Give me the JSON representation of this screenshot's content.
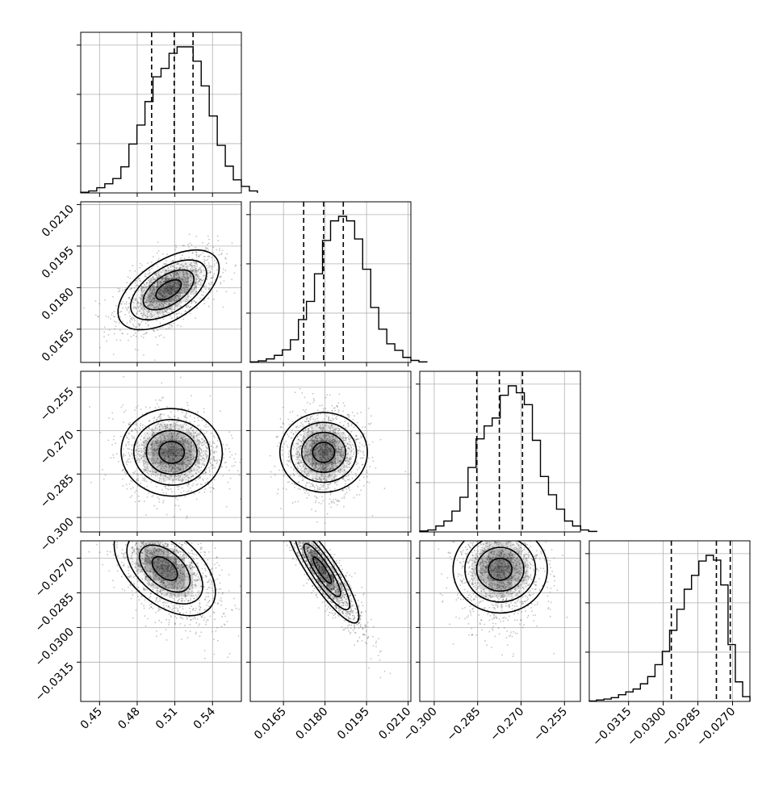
{
  "chart_data": {
    "type": "corner",
    "parameters": [
      {
        "id": "p0",
        "range": [
          0.435,
          0.563
        ],
        "ticks": [
          "0.45",
          "0.48",
          "0.51",
          "0.54"
        ],
        "tick_values": [
          0.45,
          0.48,
          0.51,
          0.54
        ],
        "quantiles": [
          0.4915,
          0.5095,
          0.5245
        ],
        "histogram": {
          "edges_start": 0.435,
          "bin_width": 0.0064,
          "counts": [
            1,
            3,
            8,
            14,
            22,
            40,
            75,
            104,
            140,
            178,
            191,
            214,
            224,
            224,
            202,
            164,
            118,
            73,
            41,
            20,
            10,
            3
          ]
        }
      },
      {
        "id": "p1",
        "range": [
          0.0153,
          0.0211
        ],
        "ticks": [
          "0.0165",
          "0.0180",
          "0.0195",
          "0.0210"
        ],
        "tick_values": [
          0.0165,
          0.018,
          0.0195,
          0.021
        ],
        "quantiles": [
          0.01723,
          0.01795,
          0.01866
        ],
        "histogram": {
          "edges_start": 0.0153,
          "bin_width": 0.00029,
          "counts": [
            1,
            3,
            7,
            14,
            25,
            45,
            85,
            121,
            176,
            242,
            281,
            290,
            281,
            245,
            185,
            109,
            66,
            37,
            24,
            10,
            4,
            1
          ]
        }
      },
      {
        "id": "p2",
        "range": [
          -0.305,
          -0.2495
        ],
        "ticks": [
          "−0.300",
          "−0.285",
          "−0.270",
          "−0.255"
        ],
        "tick_values": [
          -0.3,
          -0.285,
          -0.27,
          -0.255
        ],
        "quantiles": [
          -0.2853,
          -0.2775,
          -0.2695
        ],
        "histogram": {
          "edges_start": -0.305,
          "bin_width": 0.00278,
          "counts": [
            2,
            4,
            12,
            22,
            42,
            70,
            130,
            188,
            214,
            230,
            276,
            295,
            281,
            257,
            185,
            112,
            75,
            46,
            22,
            12,
            4,
            1
          ]
        }
      },
      {
        "id": "p3",
        "range": [
          -0.0332,
          -0.02625
        ],
        "ticks": [
          "−0.0315",
          "−0.0300",
          "−0.0285",
          "−0.0270"
        ],
        "tick_values": [
          -0.0315,
          -0.03,
          -0.0285,
          -0.027
        ],
        "quantiles": [
          -0.02965,
          -0.0277,
          -0.0271
        ],
        "histogram": {
          "edges_start": -0.0332,
          "bin_width": 0.000316,
          "counts": [
            1,
            3,
            5,
            8,
            14,
            20,
            26,
            37,
            52,
            77,
            105,
            149,
            193,
            235,
            264,
            294,
            306,
            296,
            244,
            119,
            41,
            10
          ]
        }
      }
    ],
    "pairs": [
      {
        "x": "p0",
        "y": "p1",
        "center": [
          0.505,
          0.01792
        ],
        "sigma": [
          0.0168,
          0.0006
        ],
        "rho": 0.55,
        "shift": [
          0.0,
          0.0
        ]
      },
      {
        "x": "p0",
        "y": "p2",
        "center": [
          0.5075,
          -0.2775
        ],
        "sigma": [
          0.0168,
          0.0063
        ],
        "rho": -0.02,
        "shift": [
          0.0,
          0.0
        ]
      },
      {
        "x": "p1",
        "y": "p2",
        "center": [
          0.01795,
          -0.2775
        ],
        "sigma": [
          0.0006,
          0.0063
        ],
        "rho": 0.0,
        "shift": [
          0.0,
          0.0
        ]
      },
      {
        "x": "p0",
        "y": "p3",
        "center": [
          0.502,
          -0.02745
        ],
        "sigma": [
          0.0168,
          0.00085
        ],
        "rho": -0.5,
        "shift": [
          0.35,
          -0.5
        ]
      },
      {
        "x": "p1",
        "y": "p3",
        "center": [
          0.0179,
          -0.02752
        ],
        "sigma": [
          0.00055,
          0.00095
        ],
        "rho": -0.88,
        "shift": [
          0.5,
          -0.4
        ]
      },
      {
        "x": "p2",
        "y": "p3",
        "center": [
          -0.2772,
          -0.02748
        ],
        "sigma": [
          0.0063,
          0.00085
        ],
        "rho": 0.0,
        "shift": [
          0.0,
          -0.45
        ]
      }
    ],
    "contour_levels_sigma": [
      0.5,
      1.0,
      1.5,
      2.0
    ],
    "grid": true,
    "title": "",
    "colors": {
      "line": "#000000",
      "density": "#000000",
      "points": "#555555",
      "grid": "#b0b0b0"
    }
  }
}
